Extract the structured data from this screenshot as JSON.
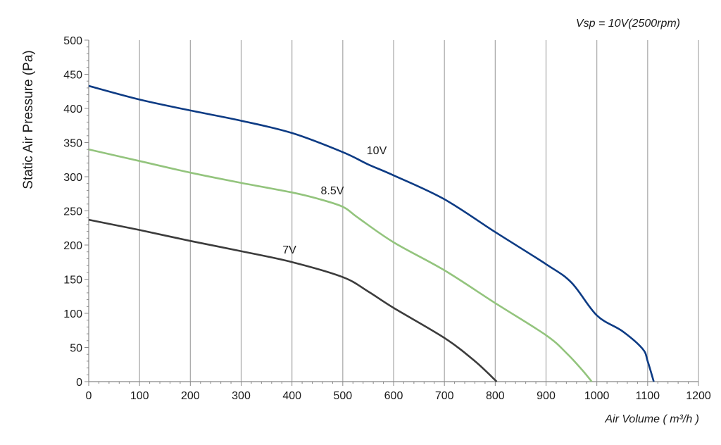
{
  "chart_data": {
    "type": "line",
    "annotation": "Vsp = 10V(2500rpm)",
    "xlabel": "Air Volume ( m³/h )",
    "ylabel": "Static Air Pressure  (Pa)",
    "xlim": [
      0,
      1200
    ],
    "ylim": [
      0,
      500
    ],
    "x_ticks": [
      0,
      100,
      200,
      300,
      400,
      500,
      600,
      700,
      800,
      900,
      1000,
      1100,
      1200
    ],
    "y_ticks": [
      0,
      50,
      100,
      150,
      200,
      250,
      300,
      350,
      400,
      450,
      500
    ],
    "grid": "vertical",
    "series": [
      {
        "name": "10V",
        "color": "#0d3b84",
        "points": [
          [
            0,
            433
          ],
          [
            100,
            413
          ],
          [
            200,
            397
          ],
          [
            300,
            382
          ],
          [
            400,
            364
          ],
          [
            500,
            336
          ],
          [
            550,
            318
          ],
          [
            600,
            302
          ],
          [
            700,
            267
          ],
          [
            800,
            219
          ],
          [
            900,
            172
          ],
          [
            950,
            145
          ],
          [
            1000,
            97
          ],
          [
            1050,
            74
          ],
          [
            1090,
            48
          ],
          [
            1100,
            30
          ],
          [
            1112,
            0
          ]
        ]
      },
      {
        "name": "8.5V",
        "color": "#93c47d",
        "points": [
          [
            0,
            340
          ],
          [
            100,
            323
          ],
          [
            200,
            306
          ],
          [
            300,
            291
          ],
          [
            400,
            277
          ],
          [
            450,
            268
          ],
          [
            500,
            256
          ],
          [
            530,
            240
          ],
          [
            600,
            204
          ],
          [
            700,
            163
          ],
          [
            800,
            115
          ],
          [
            900,
            68
          ],
          [
            940,
            42
          ],
          [
            970,
            18
          ],
          [
            990,
            0
          ]
        ]
      },
      {
        "name": "7V",
        "color": "#3c3c3c",
        "points": [
          [
            0,
            237
          ],
          [
            100,
            222
          ],
          [
            200,
            206
          ],
          [
            300,
            191
          ],
          [
            400,
            175
          ],
          [
            500,
            153
          ],
          [
            550,
            132
          ],
          [
            600,
            108
          ],
          [
            700,
            64
          ],
          [
            760,
            30
          ],
          [
            803,
            0
          ]
        ]
      }
    ]
  }
}
